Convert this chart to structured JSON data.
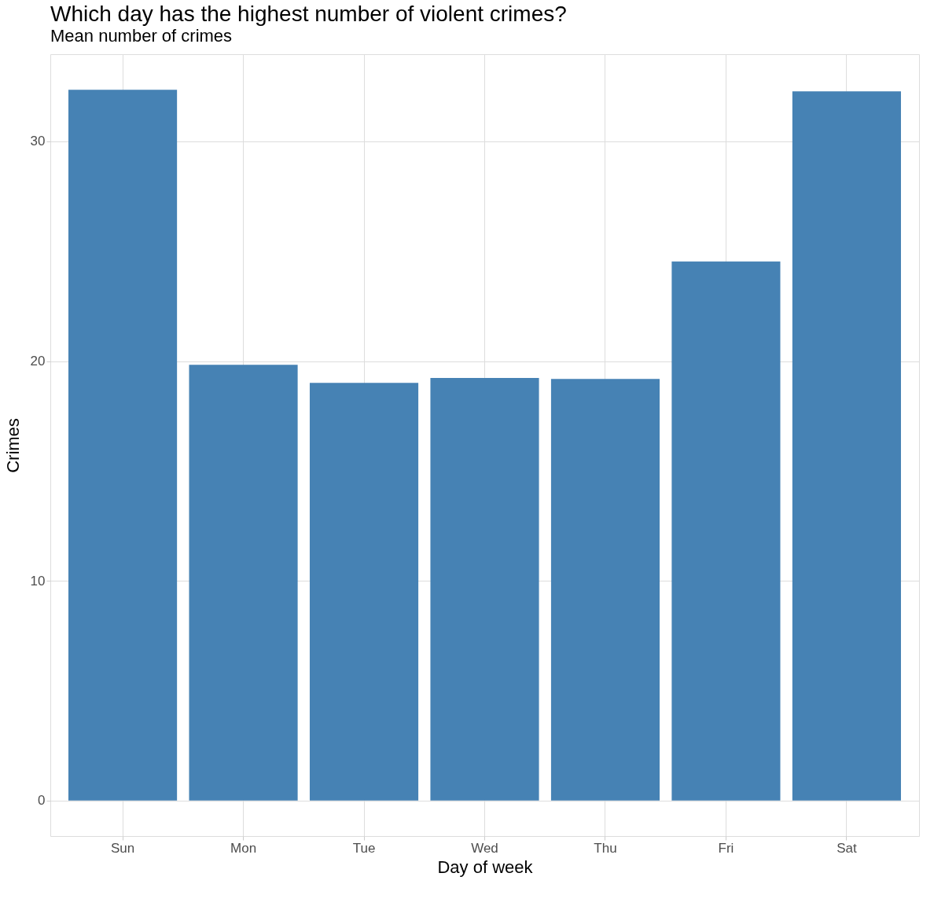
{
  "chart_data": {
    "type": "bar",
    "title": "Which day has the highest number of violent crimes?",
    "subtitle": "Mean number of crimes",
    "xlabel": "Day of week",
    "ylabel": "Crimes",
    "categories": [
      "Sun",
      "Mon",
      "Tue",
      "Wed",
      "Thu",
      "Fri",
      "Sat"
    ],
    "values": [
      32.35,
      19.83,
      19.01,
      19.23,
      19.19,
      24.54,
      32.28
    ],
    "color": "#4682b4",
    "ylim": [
      -1.62,
      33.97
    ],
    "yticks": [
      0,
      10,
      20,
      30
    ],
    "grid": true
  }
}
